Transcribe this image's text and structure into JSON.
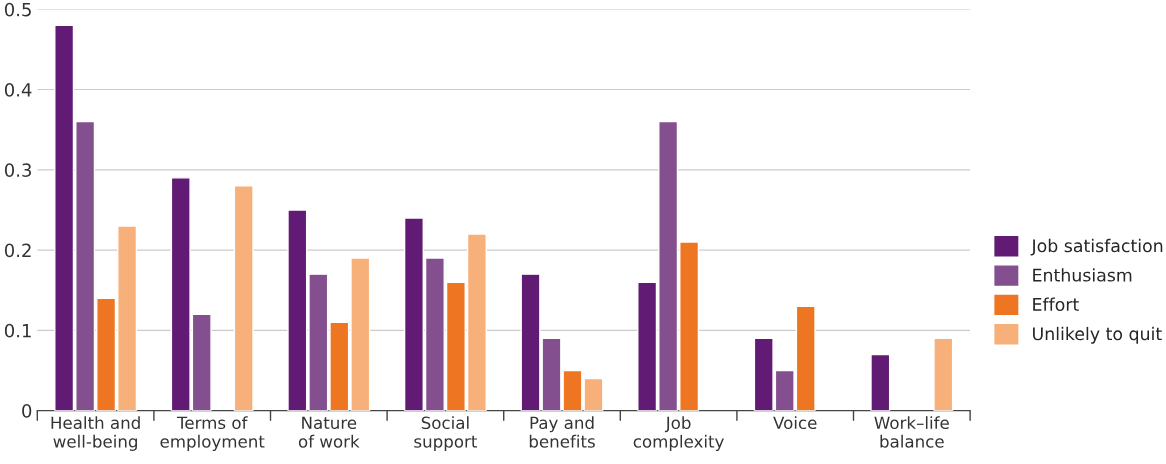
{
  "chart_data": {
    "type": "bar",
    "categories": [
      "Health and\nwell-being",
      "Terms of\nemployment",
      "Nature\nof work",
      "Social\nsupport",
      "Pay and\nbenefits",
      "Job\ncomplexity",
      "Voice",
      "Work–life\nbalance"
    ],
    "series": [
      {
        "name": "Job satisfaction",
        "color": "#611b74",
        "values": [
          0.48,
          0.29,
          0.25,
          0.24,
          0.17,
          0.16,
          0.09,
          0.07
        ]
      },
      {
        "name": "Enthusiasm",
        "color": "#834f8f",
        "values": [
          0.36,
          0.12,
          0.17,
          0.19,
          0.09,
          0.36,
          0.05,
          null
        ]
      },
      {
        "name": "Effort",
        "color": "#ee7623",
        "values": [
          0.14,
          null,
          0.11,
          0.16,
          0.05,
          0.21,
          0.13,
          null
        ]
      },
      {
        "name": "Unlikely to quit",
        "color": "#f8b07a",
        "values": [
          0.23,
          0.28,
          0.19,
          0.22,
          0.04,
          null,
          null,
          0.09
        ]
      }
    ],
    "ylim": [
      0,
      0.5
    ],
    "yticks": [
      0,
      0.1,
      0.2,
      0.3,
      0.4,
      0.5
    ],
    "grid": "y",
    "legend": "right"
  }
}
